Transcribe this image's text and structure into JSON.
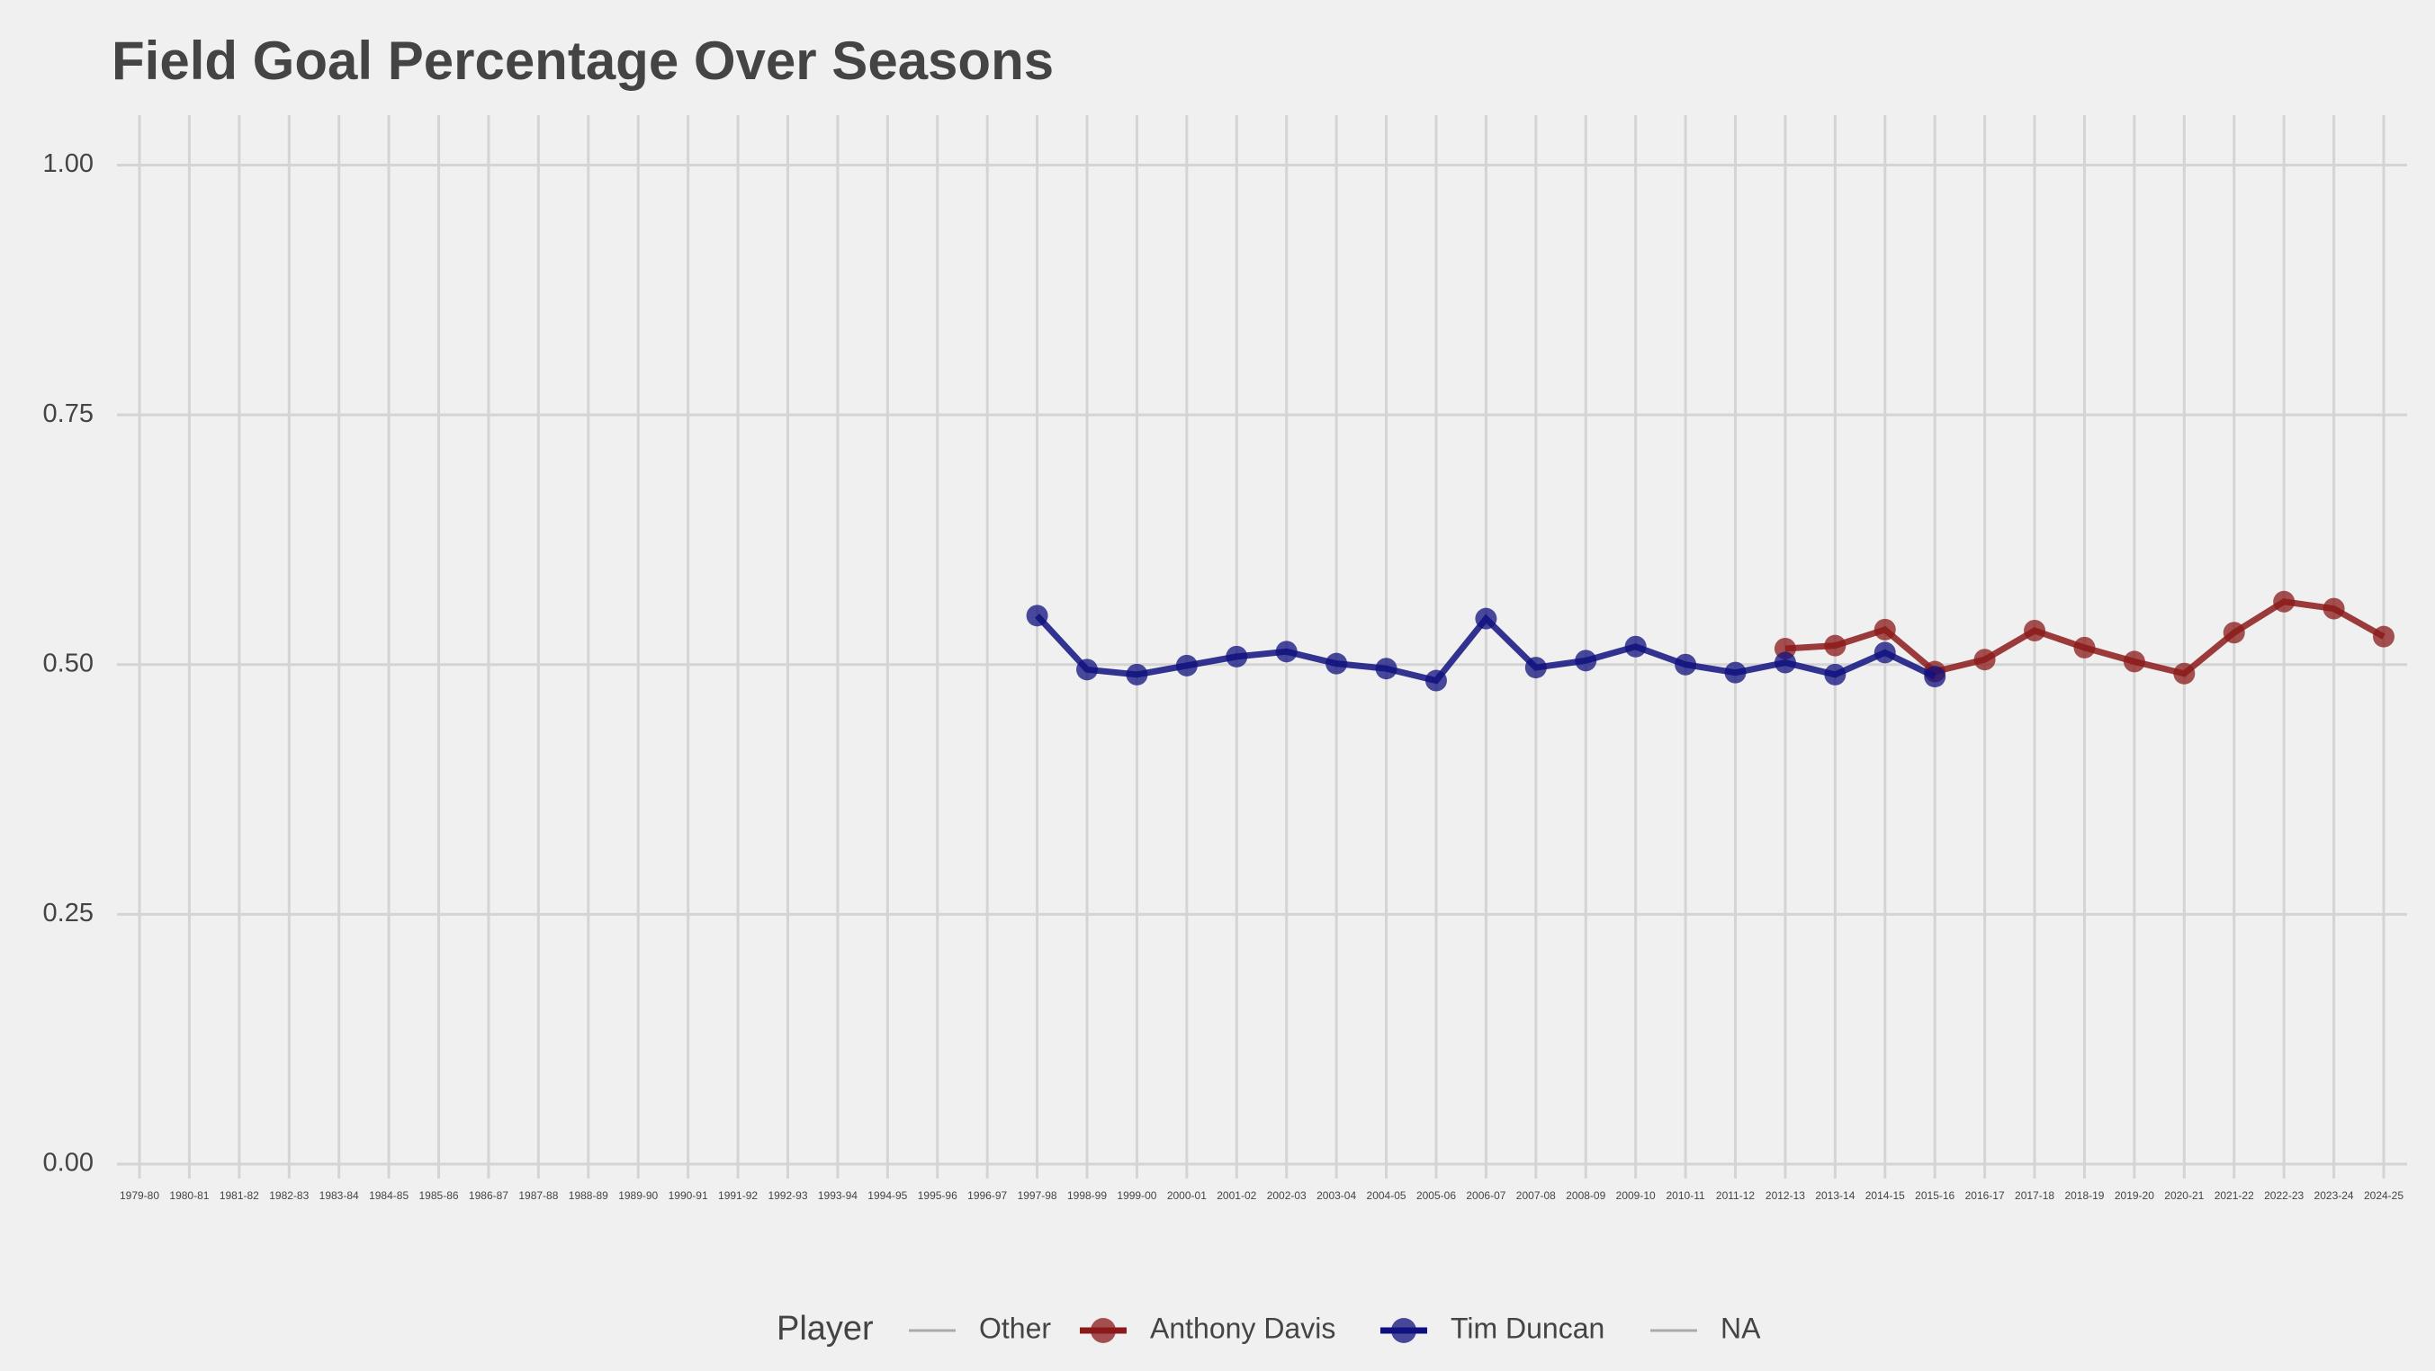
{
  "chart_data": {
    "type": "line",
    "title": "Field Goal Percentage Over Seasons",
    "categories": [
      "1979-80",
      "1980-81",
      "1981-82",
      "1982-83",
      "1983-84",
      "1984-85",
      "1985-86",
      "1986-87",
      "1987-88",
      "1988-89",
      "1989-90",
      "1990-91",
      "1991-92",
      "1992-93",
      "1993-94",
      "1994-95",
      "1995-96",
      "1996-97",
      "1997-98",
      "1998-99",
      "1999-00",
      "2000-01",
      "2001-02",
      "2002-03",
      "2003-04",
      "2004-05",
      "2005-06",
      "2006-07",
      "2007-08",
      "2008-09",
      "2009-10",
      "2010-11",
      "2011-12",
      "2012-13",
      "2013-14",
      "2014-15",
      "2015-16",
      "2016-17",
      "2017-18",
      "2018-19",
      "2019-20",
      "2020-21",
      "2021-22",
      "2022-23",
      "2023-24",
      "2024-25"
    ],
    "legend_title": "Player",
    "series": [
      {
        "name": "Other",
        "color": "#aaaaaa",
        "values": [
          null,
          null,
          null,
          null,
          null,
          null,
          null,
          null,
          null,
          null,
          null,
          null,
          null,
          null,
          null,
          null,
          null,
          null,
          null,
          null,
          null,
          null,
          null,
          null,
          null,
          null,
          null,
          null,
          null,
          null,
          null,
          null,
          null,
          null,
          null,
          null,
          null,
          null,
          null,
          null,
          null,
          null,
          null,
          null,
          null,
          null
        ]
      },
      {
        "name": "Anthony Davis",
        "color": "#8b1a1a",
        "values": [
          null,
          null,
          null,
          null,
          null,
          null,
          null,
          null,
          null,
          null,
          null,
          null,
          null,
          null,
          null,
          null,
          null,
          null,
          null,
          null,
          null,
          null,
          null,
          null,
          null,
          null,
          null,
          null,
          null,
          null,
          null,
          null,
          null,
          0.516,
          0.519,
          0.535,
          0.493,
          0.505,
          0.534,
          0.517,
          0.503,
          0.491,
          0.532,
          0.563,
          0.556,
          0.528
        ]
      },
      {
        "name": "Tim Duncan",
        "color": "#10107f",
        "values": [
          null,
          null,
          null,
          null,
          null,
          null,
          null,
          null,
          null,
          null,
          null,
          null,
          null,
          null,
          null,
          null,
          null,
          null,
          0.549,
          0.495,
          0.49,
          0.499,
          0.508,
          0.513,
          0.501,
          0.496,
          0.484,
          0.546,
          0.497,
          0.504,
          0.518,
          0.5,
          0.492,
          0.502,
          0.49,
          0.512,
          0.488,
          null,
          null,
          null,
          null,
          null,
          null,
          null,
          null,
          null
        ]
      },
      {
        "name": "NA",
        "color": "#aaaaaa",
        "values": [
          null,
          null,
          null,
          null,
          null,
          null,
          null,
          null,
          null,
          null,
          null,
          null,
          null,
          null,
          null,
          null,
          null,
          null,
          null,
          null,
          null,
          null,
          null,
          null,
          null,
          null,
          null,
          null,
          null,
          null,
          null,
          null,
          null,
          null,
          null,
          null,
          null,
          null,
          null,
          null,
          null,
          null,
          null,
          null,
          null,
          null
        ]
      }
    ],
    "ylim": [
      0,
      1.05
    ],
    "yticks": [
      {
        "value": 0,
        "label": "0.00"
      },
      {
        "value": 0.25,
        "label": "0.25"
      },
      {
        "value": 0.5,
        "label": "0.50"
      },
      {
        "value": 0.75,
        "label": "0.75"
      },
      {
        "value": 1,
        "label": "1.00"
      }
    ],
    "grid": true
  }
}
